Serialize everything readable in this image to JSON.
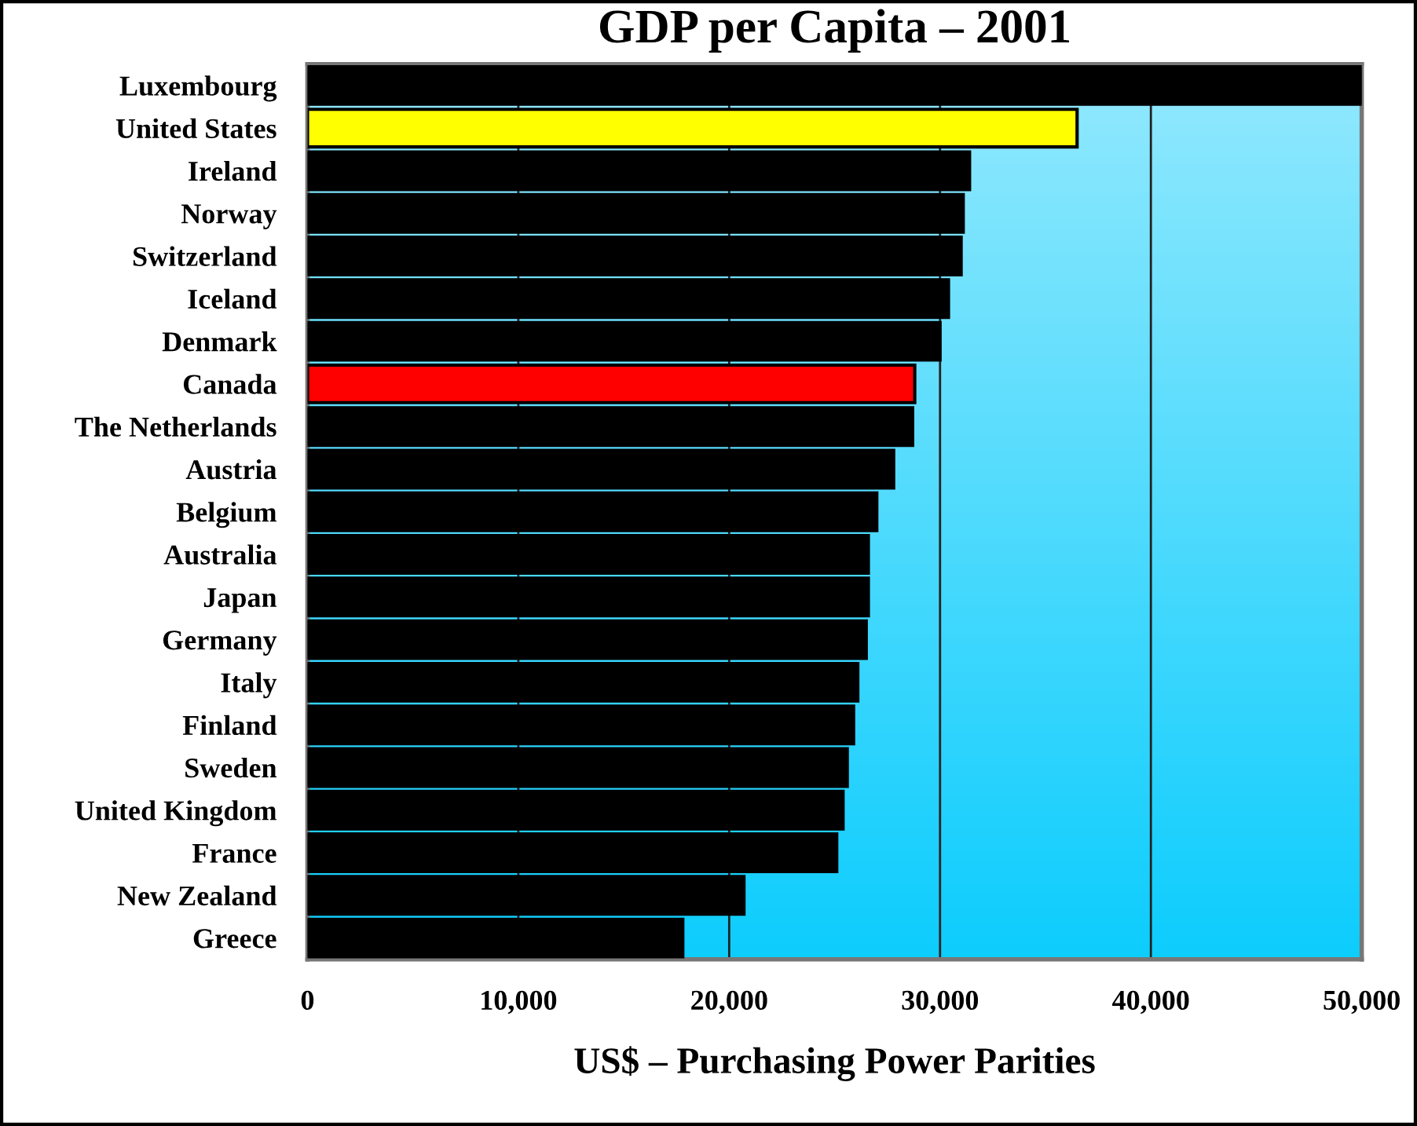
{
  "chart_data": {
    "type": "bar",
    "orientation": "horizontal",
    "title": "GDP per Capita – 2001",
    "xlabel": "US$ – Purchasing Power Parities",
    "categories": [
      "Luxembourg",
      "United States",
      "Ireland",
      "Norway",
      "Switzerland",
      "Iceland",
      "Denmark",
      "Canada",
      "The Netherlands",
      "Austria",
      "Belgium",
      "Australia",
      "Japan",
      "Germany",
      "Italy",
      "Finland",
      "Sweden",
      "United Kingdom",
      "France",
      "New Zealand",
      "Greece"
    ],
    "values": [
      50000,
      36500,
      31400,
      31100,
      31000,
      30400,
      30000,
      28800,
      28700,
      27800,
      27000,
      26600,
      26600,
      26500,
      26100,
      25900,
      25600,
      25400,
      25100,
      20700,
      17800
    ],
    "colors": [
      "#000000",
      "#ffff00",
      "#000000",
      "#000000",
      "#000000",
      "#000000",
      "#000000",
      "#ff0000",
      "#000000",
      "#000000",
      "#000000",
      "#000000",
      "#000000",
      "#000000",
      "#000000",
      "#000000",
      "#000000",
      "#000000",
      "#000000",
      "#000000",
      "#000000"
    ],
    "xlim": [
      0,
      50000
    ],
    "xticks": [
      0,
      {
        "value": 10000,
        "label": "10,000"
      },
      {
        "value": 20000,
        "label": "20,000"
      },
      {
        "value": 30000,
        "label": "30,000"
      },
      {
        "value": 40000,
        "label": "40,000"
      },
      {
        "value": 50000,
        "label": "50,000"
      }
    ],
    "grid": "x",
    "legend": false
  }
}
